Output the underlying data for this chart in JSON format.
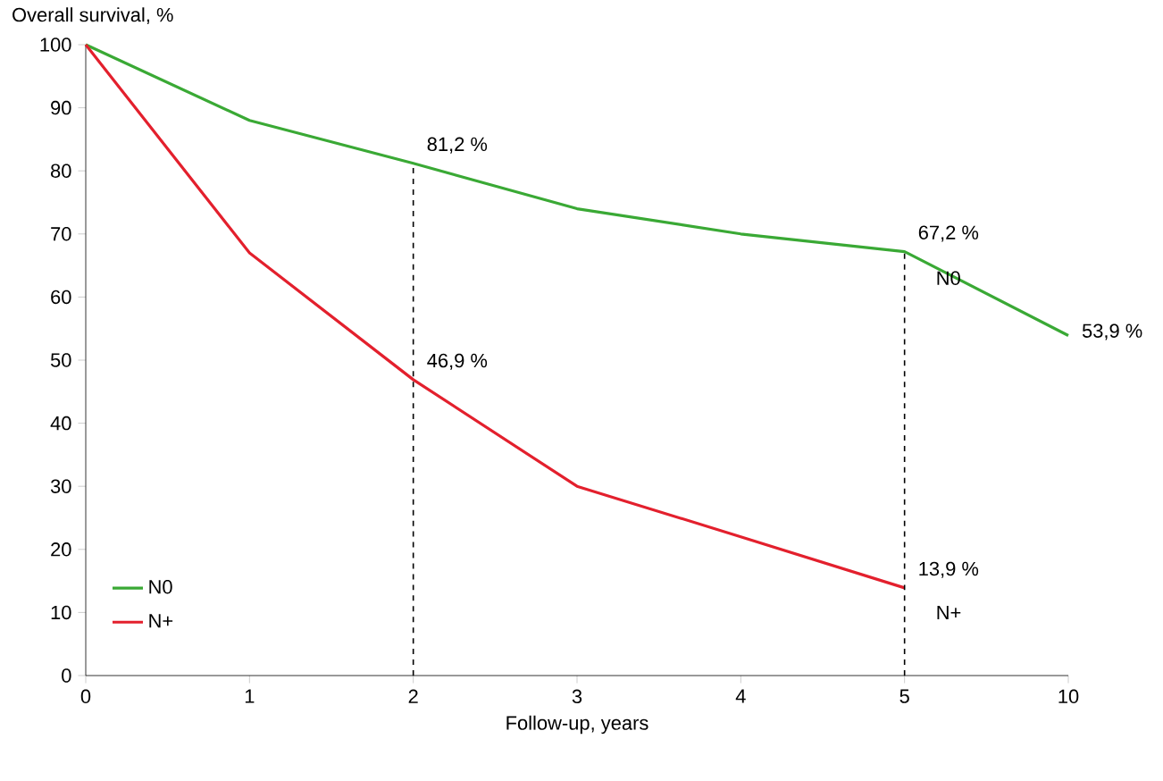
{
  "chart_data": {
    "type": "line",
    "xlabel": "Follow-up, years",
    "ylabel": "Overall survival, %",
    "categories": [
      "0",
      "1",
      "2",
      "3",
      "4",
      "5",
      "10"
    ],
    "series": [
      {
        "name": "N0",
        "color": "#3aa935",
        "values": [
          100,
          88,
          81.2,
          74,
          70,
          67.2,
          53.9
        ],
        "value_labels": [
          null,
          null,
          "81,2 %",
          null,
          null,
          "67,2 %",
          "53,9 %"
        ]
      },
      {
        "name": "N+",
        "color": "#e3202d",
        "values": [
          100,
          67,
          46.9,
          30,
          22,
          13.9,
          null
        ],
        "value_labels": [
          null,
          null,
          "46,9 %",
          null,
          null,
          "13,9 %",
          null
        ]
      }
    ],
    "ylim": [
      0,
      100
    ],
    "yticks": [
      0,
      10,
      20,
      30,
      40,
      50,
      60,
      70,
      80,
      90,
      100
    ],
    "ref_lines": [
      {
        "axis": "x",
        "value": "2",
        "line_style": "dashed",
        "color": "#000000"
      },
      {
        "axis": "x",
        "value": "5",
        "line_style": "dashed",
        "color": "#000000"
      }
    ],
    "annotations": [
      {
        "text": "N0",
        "x": "5",
        "y": 63
      },
      {
        "text": "N+",
        "x": "5",
        "y": 10
      }
    ],
    "legend": "bottom left",
    "grid": false,
    "marker": "none",
    "line_style": "solid"
  }
}
